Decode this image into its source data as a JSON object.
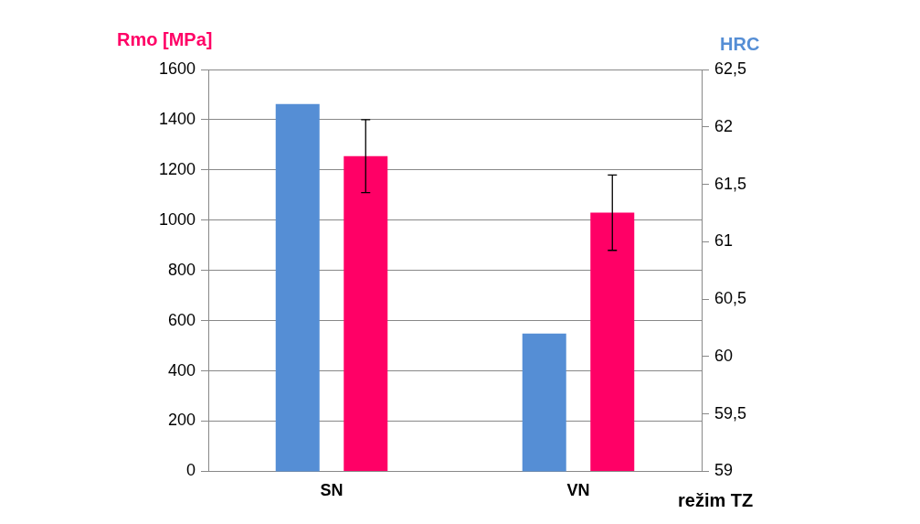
{
  "chart_data": {
    "type": "bar",
    "ylabel": "Rmo [MPa]",
    "y2label": "HRC",
    "xlabel": "režim TZ",
    "categories": [
      "SN",
      "VN"
    ],
    "series": [
      {
        "color": "#558ed5",
        "values": [
          62.2,
          60.2
        ],
        "axis": "y2"
      },
      {
        "color": "#ff0066",
        "values": [
          1255,
          1030
        ],
        "axis": "y",
        "errors": [
          145,
          150
        ]
      }
    ],
    "ylim": [
      0,
      1600
    ],
    "yticks": [
      0,
      200,
      400,
      600,
      800,
      1000,
      1200,
      1400,
      1600
    ],
    "y2lim": [
      59,
      62.5
    ],
    "y2ticks": [
      {
        "value": 59,
        "label": "59"
      },
      {
        "value": 59.5,
        "label": "59,5"
      },
      {
        "value": 60,
        "label": "60"
      },
      {
        "value": 60.5,
        "label": "60,5"
      },
      {
        "value": 61,
        "label": "61"
      },
      {
        "value": 61.5,
        "label": "61,5"
      },
      {
        "value": 62,
        "label": "62"
      },
      {
        "value": 62.5,
        "label": "62,5"
      }
    ],
    "grid": "y"
  }
}
